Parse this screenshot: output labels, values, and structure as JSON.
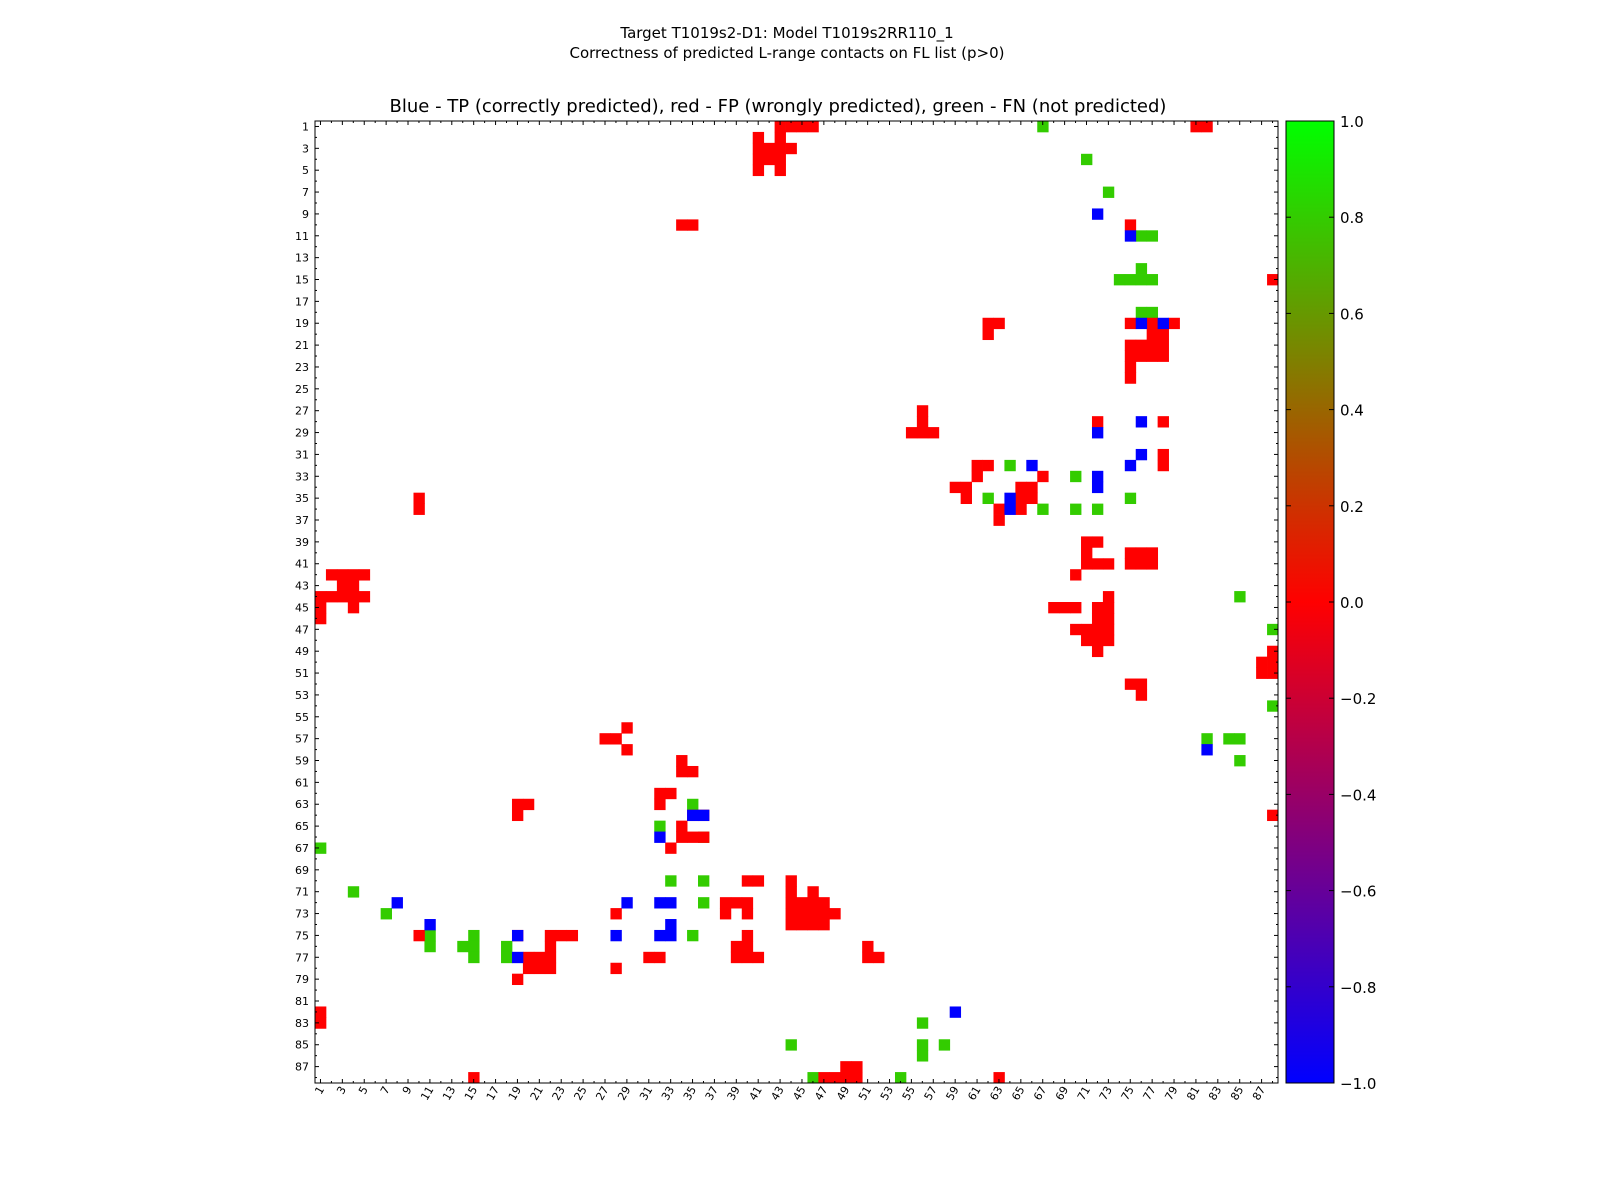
{
  "suptitle": {
    "line1": "Target T1019s2-D1: Model T1019s2RR110_1",
    "line2": "Correctness of predicted L-range contacts on FL list (p>0)"
  },
  "chart_data": {
    "type": "heatmap",
    "title": "Blue - TP (correctly predicted), red - FP (wrongly predicted), green - FN (not predicted)",
    "xlabel": "",
    "ylabel": "",
    "n_residues": 88,
    "x_tick_labels": [
      "1",
      "3",
      "5",
      "7",
      "9",
      "11",
      "13",
      "15",
      "17",
      "19",
      "21",
      "23",
      "25",
      "27",
      "29",
      "31",
      "33",
      "35",
      "37",
      "39",
      "41",
      "43",
      "45",
      "47",
      "49",
      "51",
      "53",
      "55",
      "57",
      "59",
      "61",
      "63",
      "65",
      "67",
      "69",
      "71",
      "73",
      "75",
      "77",
      "79",
      "81",
      "83",
      "85",
      "87"
    ],
    "y_tick_labels": [
      "1",
      "3",
      "5",
      "7",
      "9",
      "11",
      "13",
      "15",
      "17",
      "19",
      "21",
      "23",
      "25",
      "27",
      "29",
      "31",
      "33",
      "35",
      "37",
      "39",
      "41",
      "43",
      "45",
      "47",
      "49",
      "51",
      "53",
      "55",
      "57",
      "59",
      "61",
      "63",
      "65",
      "67",
      "69",
      "71",
      "73",
      "75",
      "77",
      "79",
      "81",
      "83",
      "85",
      "87"
    ],
    "colorbar": {
      "vmin": -1.0,
      "vmax": 1.0,
      "tick_labels": [
        "1.0",
        "0.8",
        "0.6",
        "0.4",
        "0.2",
        "0.0",
        "−0.2",
        "−0.4",
        "−0.6",
        "−0.8",
        "−1.0"
      ],
      "colors": [
        "#0000ff",
        "#ff0000",
        "#00ff00"
      ]
    },
    "colors": {
      "TP": "#0000ff",
      "FP": "#ff0000",
      "FN": "#33cc00"
    },
    "cells": {
      "TP": [
        [
          9,
          72
        ],
        [
          11,
          75
        ],
        [
          19,
          76
        ],
        [
          19,
          78
        ],
        [
          29,
          72
        ],
        [
          28,
          76
        ],
        [
          31,
          76
        ],
        [
          32,
          75
        ],
        [
          33,
          72
        ],
        [
          32,
          66
        ],
        [
          34,
          72
        ],
        [
          35,
          64
        ],
        [
          36,
          64
        ],
        [
          72,
          8
        ],
        [
          72,
          29
        ],
        [
          72,
          32
        ],
        [
          72,
          33
        ],
        [
          74,
          11
        ],
        [
          74,
          33
        ],
        [
          75,
          19
        ],
        [
          75,
          28
        ],
        [
          75,
          32
        ],
        [
          75,
          33
        ],
        [
          64,
          35
        ],
        [
          64,
          36
        ],
        [
          66,
          32
        ],
        [
          77,
          19
        ],
        [
          82,
          59
        ],
        [
          58,
          82
        ]
      ],
      "FP": [
        [
          1,
          43
        ],
        [
          1,
          44
        ],
        [
          1,
          45
        ],
        [
          1,
          46
        ],
        [
          1,
          81
        ],
        [
          1,
          82
        ],
        [
          2,
          41
        ],
        [
          2,
          43
        ],
        [
          3,
          41
        ],
        [
          3,
          42
        ],
        [
          3,
          43
        ],
        [
          3,
          44
        ],
        [
          4,
          41
        ],
        [
          4,
          42
        ],
        [
          4,
          43
        ],
        [
          5,
          41
        ],
        [
          5,
          43
        ],
        [
          10,
          34
        ],
        [
          10,
          35
        ],
        [
          10,
          75
        ],
        [
          15,
          88
        ],
        [
          19,
          62
        ],
        [
          19,
          63
        ],
        [
          19,
          75
        ],
        [
          19,
          77
        ],
        [
          19,
          79
        ],
        [
          20,
          62
        ],
        [
          20,
          77
        ],
        [
          20,
          78
        ],
        [
          21,
          75
        ],
        [
          21,
          76
        ],
        [
          21,
          77
        ],
        [
          21,
          78
        ],
        [
          22,
          75
        ],
        [
          22,
          76
        ],
        [
          22,
          77
        ],
        [
          22,
          78
        ],
        [
          23,
          75
        ],
        [
          24,
          75
        ],
        [
          27,
          56
        ],
        [
          28,
          56
        ],
        [
          28,
          72
        ],
        [
          28,
          78
        ],
        [
          29,
          55
        ],
        [
          29,
          56
        ],
        [
          29,
          57
        ],
        [
          31,
          78
        ],
        [
          32,
          61
        ],
        [
          32,
          62
        ],
        [
          32,
          78
        ],
        [
          33,
          61
        ],
        [
          33,
          67
        ],
        [
          34,
          59
        ],
        [
          34,
          60
        ],
        [
          34,
          65
        ],
        [
          34,
          66
        ],
        [
          35,
          10
        ],
        [
          35,
          60
        ],
        [
          35,
          65
        ],
        [
          35,
          66
        ],
        [
          36,
          10
        ],
        [
          36,
          63
        ],
        [
          36,
          65
        ],
        [
          37,
          63
        ],
        [
          39,
          71
        ],
        [
          39,
          72
        ],
        [
          40,
          71
        ],
        [
          40,
          75
        ],
        [
          40,
          76
        ],
        [
          40,
          77
        ],
        [
          41,
          71
        ],
        [
          41,
          72
        ],
        [
          41,
          73
        ],
        [
          41,
          75
        ],
        [
          41,
          76
        ],
        [
          41,
          77
        ],
        [
          42,
          2
        ],
        [
          42,
          3
        ],
        [
          42,
          4
        ],
        [
          42,
          5
        ],
        [
          42,
          70
        ],
        [
          43,
          3
        ],
        [
          43,
          4
        ],
        [
          44,
          1
        ],
        [
          44,
          2
        ],
        [
          44,
          3
        ],
        [
          44,
          4
        ],
        [
          44,
          5
        ],
        [
          44,
          73
        ],
        [
          45,
          1
        ],
        [
          45,
          4
        ],
        [
          45,
          68
        ],
        [
          45,
          69
        ],
        [
          45,
          70
        ],
        [
          45,
          72
        ],
        [
          45,
          73
        ],
        [
          46,
          1
        ],
        [
          46,
          72
        ],
        [
          46,
          73
        ],
        [
          47,
          70
        ],
        [
          47,
          71
        ],
        [
          47,
          72
        ],
        [
          47,
          73
        ],
        [
          48,
          71
        ],
        [
          48,
          72
        ],
        [
          48,
          73
        ],
        [
          49,
          72
        ],
        [
          49,
          88
        ],
        [
          50,
          87
        ],
        [
          50,
          88
        ],
        [
          51,
          87
        ],
        [
          51,
          88
        ],
        [
          52,
          75
        ],
        [
          52,
          76
        ],
        [
          53,
          76
        ],
        [
          56,
          29
        ],
        [
          57,
          27
        ],
        [
          57,
          28
        ],
        [
          58,
          29
        ],
        [
          59,
          34
        ],
        [
          60,
          34
        ],
        [
          60,
          35
        ],
        [
          62,
          32
        ],
        [
          62,
          33
        ],
        [
          63,
          19
        ],
        [
          63,
          20
        ],
        [
          63,
          32
        ],
        [
          64,
          19
        ],
        [
          64,
          35
        ],
        [
          64,
          36
        ],
        [
          64,
          88
        ],
        [
          65,
          34
        ],
        [
          66,
          34
        ],
        [
          66,
          35
        ],
        [
          66,
          36
        ],
        [
          67,
          33
        ],
        [
          70,
          44
        ],
        [
          70,
          40
        ],
        [
          70,
          41
        ],
        [
          71,
          44
        ],
        [
          71,
          46
        ],
        [
          72,
          38
        ],
        [
          72,
          39
        ],
        [
          72,
          40
        ],
        [
          72,
          44
        ],
        [
          72,
          45
        ],
        [
          72,
          46
        ],
        [
          72,
          47
        ],
        [
          73,
          38
        ],
        [
          73,
          40
        ],
        [
          73,
          44
        ],
        [
          73,
          45
        ],
        [
          73,
          46
        ],
        [
          73,
          47
        ],
        [
          73,
          48
        ],
        [
          73,
          28
        ],
        [
          74,
          44
        ],
        [
          74,
          45
        ],
        [
          74,
          46
        ],
        [
          74,
          47
        ],
        [
          75,
          10
        ],
        [
          75,
          19
        ],
        [
          75,
          22
        ],
        [
          75,
          23
        ],
        [
          75,
          24
        ],
        [
          75,
          40
        ],
        [
          76,
          22
        ],
        [
          76,
          39
        ],
        [
          76,
          40
        ],
        [
          76,
          51
        ],
        [
          77,
          20
        ],
        [
          77,
          21
        ],
        [
          77,
          22
        ],
        [
          77,
          31
        ],
        [
          77,
          32
        ],
        [
          77,
          39
        ],
        [
          77,
          40
        ],
        [
          77,
          41
        ],
        [
          77,
          51
        ],
        [
          77,
          52
        ],
        [
          78,
          28
        ],
        [
          78,
          20
        ],
        [
          78,
          21
        ],
        [
          78,
          22
        ],
        [
          79,
          19
        ],
        [
          82,
          1
        ],
        [
          83,
          1
        ],
        [
          87,
          49
        ],
        [
          87,
          50
        ],
        [
          88,
          47
        ],
        [
          88,
          48
        ],
        [
          88,
          49
        ],
        [
          88,
          50
        ],
        [
          88,
          15
        ],
        [
          88,
          63
        ]
      ],
      "FN": [
        [
          1,
          67
        ],
        [
          4,
          71
        ],
        [
          7,
          73
        ],
        [
          11,
          76
        ],
        [
          11,
          77
        ],
        [
          14,
          76
        ],
        [
          15,
          74
        ],
        [
          15,
          75
        ],
        [
          15,
          76
        ],
        [
          15,
          77
        ],
        [
          18,
          76
        ],
        [
          18,
          77
        ],
        [
          32,
          64
        ],
        [
          33,
          70
        ],
        [
          35,
          75
        ],
        [
          35,
          62
        ],
        [
          36,
          67
        ],
        [
          36,
          70
        ],
        [
          36,
          72
        ],
        [
          44,
          85
        ],
        [
          47,
          88
        ],
        [
          54,
          88
        ],
        [
          57,
          82
        ],
        [
          57,
          84
        ],
        [
          57,
          85
        ],
        [
          59,
          85
        ],
        [
          63,
          35
        ],
        [
          65,
          32
        ],
        [
          66,
          36
        ],
        [
          67,
          1
        ],
        [
          70,
          33
        ],
        [
          70,
          36
        ],
        [
          71,
          4
        ],
        [
          72,
          36
        ],
        [
          73,
          7
        ],
        [
          75,
          11
        ],
        [
          75,
          15
        ],
        [
          75,
          35
        ],
        [
          76,
          11
        ],
        [
          76,
          14
        ],
        [
          76,
          15
        ],
        [
          76,
          18
        ],
        [
          77,
          15
        ],
        [
          77,
          18
        ],
        [
          83,
          56
        ],
        [
          85,
          44
        ],
        [
          85,
          56
        ],
        [
          85,
          58
        ],
        [
          86,
          56
        ],
        [
          88,
          46
        ],
        [
          88,
          54
        ]
      ]
    }
  }
}
